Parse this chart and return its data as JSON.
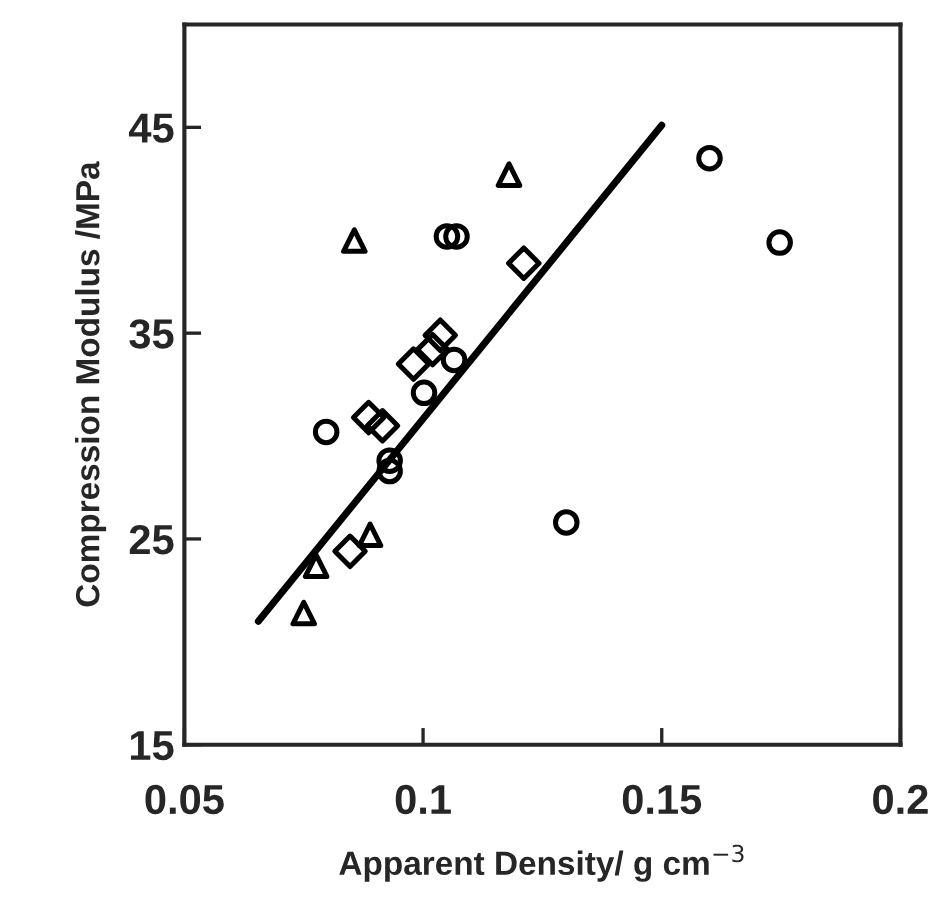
{
  "chart_data": {
    "type": "scatter",
    "xlabel": "Apparent Density/ g cm$^{−3}$",
    "ylabel": "Compression Modulus /MPa",
    "xlim": [
      0.05,
      0.2
    ],
    "ylim": [
      15,
      50
    ],
    "xticks": [
      0.05,
      0.1,
      0.15,
      0.2
    ],
    "yticks": [
      15,
      25,
      35,
      45
    ],
    "grid": false,
    "legend": false,
    "series": [
      {
        "marker": "triangle",
        "color": "#000000",
        "x": [
          0.0856,
          0.118,
          0.075,
          0.0776,
          0.0889
        ],
        "values": [
          39.5,
          42.7,
          21.4,
          23.7,
          25.2
        ]
      },
      {
        "marker": "circle",
        "color": "#000000",
        "x": [
          0.105,
          0.107,
          0.0797,
          0.093,
          0.093,
          0.1002,
          0.1065,
          0.16,
          0.1747,
          0.13
        ],
        "values": [
          39.7,
          39.7,
          30.2,
          28.8,
          28.3,
          32.1,
          33.7,
          43.5,
          39.4,
          25.8
        ]
      },
      {
        "marker": "diamond",
        "color": "#000000",
        "x": [
          0.1211,
          0.1036,
          0.102,
          0.098,
          0.0886,
          0.0915,
          0.0847
        ],
        "values": [
          38.4,
          34.9,
          34.2,
          33.5,
          30.9,
          30.5,
          24.4
        ]
      },
      {
        "type": "line",
        "line_style": "solid",
        "marker": "none",
        "color": "#000000",
        "x": [
          0.0655,
          0.15
        ],
        "values": [
          21.0,
          45.1
        ]
      }
    ]
  }
}
